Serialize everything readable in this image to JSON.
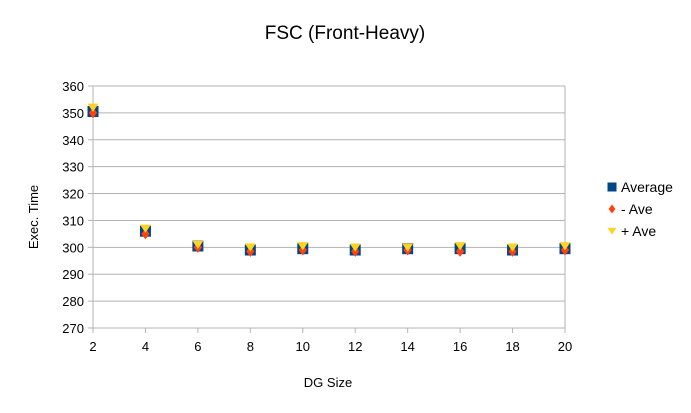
{
  "chart_data": {
    "type": "scatter",
    "title": "FSC (Front-Heavy)",
    "xlabel": "DG Size",
    "ylabel": "Exec. Time",
    "x": [
      2,
      4,
      6,
      8,
      10,
      12,
      14,
      16,
      18,
      20
    ],
    "xlim": [
      2,
      20
    ],
    "ylim": [
      270,
      360
    ],
    "yticks": [
      270,
      280,
      290,
      300,
      310,
      320,
      330,
      340,
      350,
      360
    ],
    "xticks": [
      2,
      4,
      6,
      8,
      10,
      12,
      14,
      16,
      18,
      20
    ],
    "grid": "horizontal",
    "legend_position": "right",
    "series": [
      {
        "name": "Average",
        "marker": "square",
        "color": "#004586",
        "values": [
          350.5,
          306,
          300.5,
          299,
          299.5,
          299,
          299.5,
          299.5,
          299,
          299.5
        ]
      },
      {
        "name": "- Ave",
        "marker": "diamond",
        "color": "#ff420e",
        "values": [
          350,
          305,
          300,
          298.5,
          299,
          298.5,
          299,
          298.5,
          298.5,
          299
        ]
      },
      {
        "name": "+ Ave",
        "marker": "triangle-down",
        "color": "#ffd320",
        "values": [
          352,
          307,
          301,
          300,
          300.5,
          300,
          300,
          300.5,
          300,
          300.5
        ]
      }
    ]
  }
}
